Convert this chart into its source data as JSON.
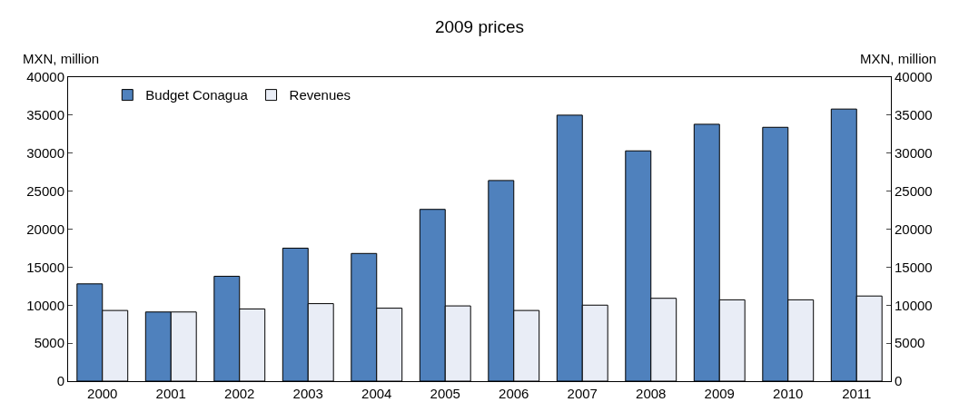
{
  "chart_data": {
    "type": "bar",
    "title": "2009 prices",
    "ylabel": "MXN, million",
    "y2label": "MXN, million",
    "categories": [
      "2000",
      "2001",
      "2002",
      "2003",
      "2004",
      "2005",
      "2006",
      "2007",
      "2008",
      "2009",
      "2010",
      "2011"
    ],
    "series": [
      {
        "name": "Budget Conagua",
        "color": "#4f81bd",
        "values": [
          12800,
          9100,
          13800,
          17500,
          16800,
          22600,
          26400,
          35000,
          30300,
          33800,
          33400,
          35800
        ]
      },
      {
        "name": "Revenues",
        "color": "#e9edf6",
        "values": [
          9300,
          9100,
          9500,
          10200,
          9600,
          9900,
          9300,
          10000,
          10900,
          10700,
          10700,
          11200
        ]
      }
    ],
    "ylim": [
      0,
      40000
    ],
    "yticks": [
      0,
      5000,
      10000,
      15000,
      20000,
      25000,
      30000,
      35000,
      40000
    ],
    "y2lim": [
      0,
      40000
    ],
    "y2ticks": [
      0,
      5000,
      10000,
      15000,
      20000,
      25000,
      30000,
      35000,
      40000
    ],
    "legend": "top left"
  }
}
